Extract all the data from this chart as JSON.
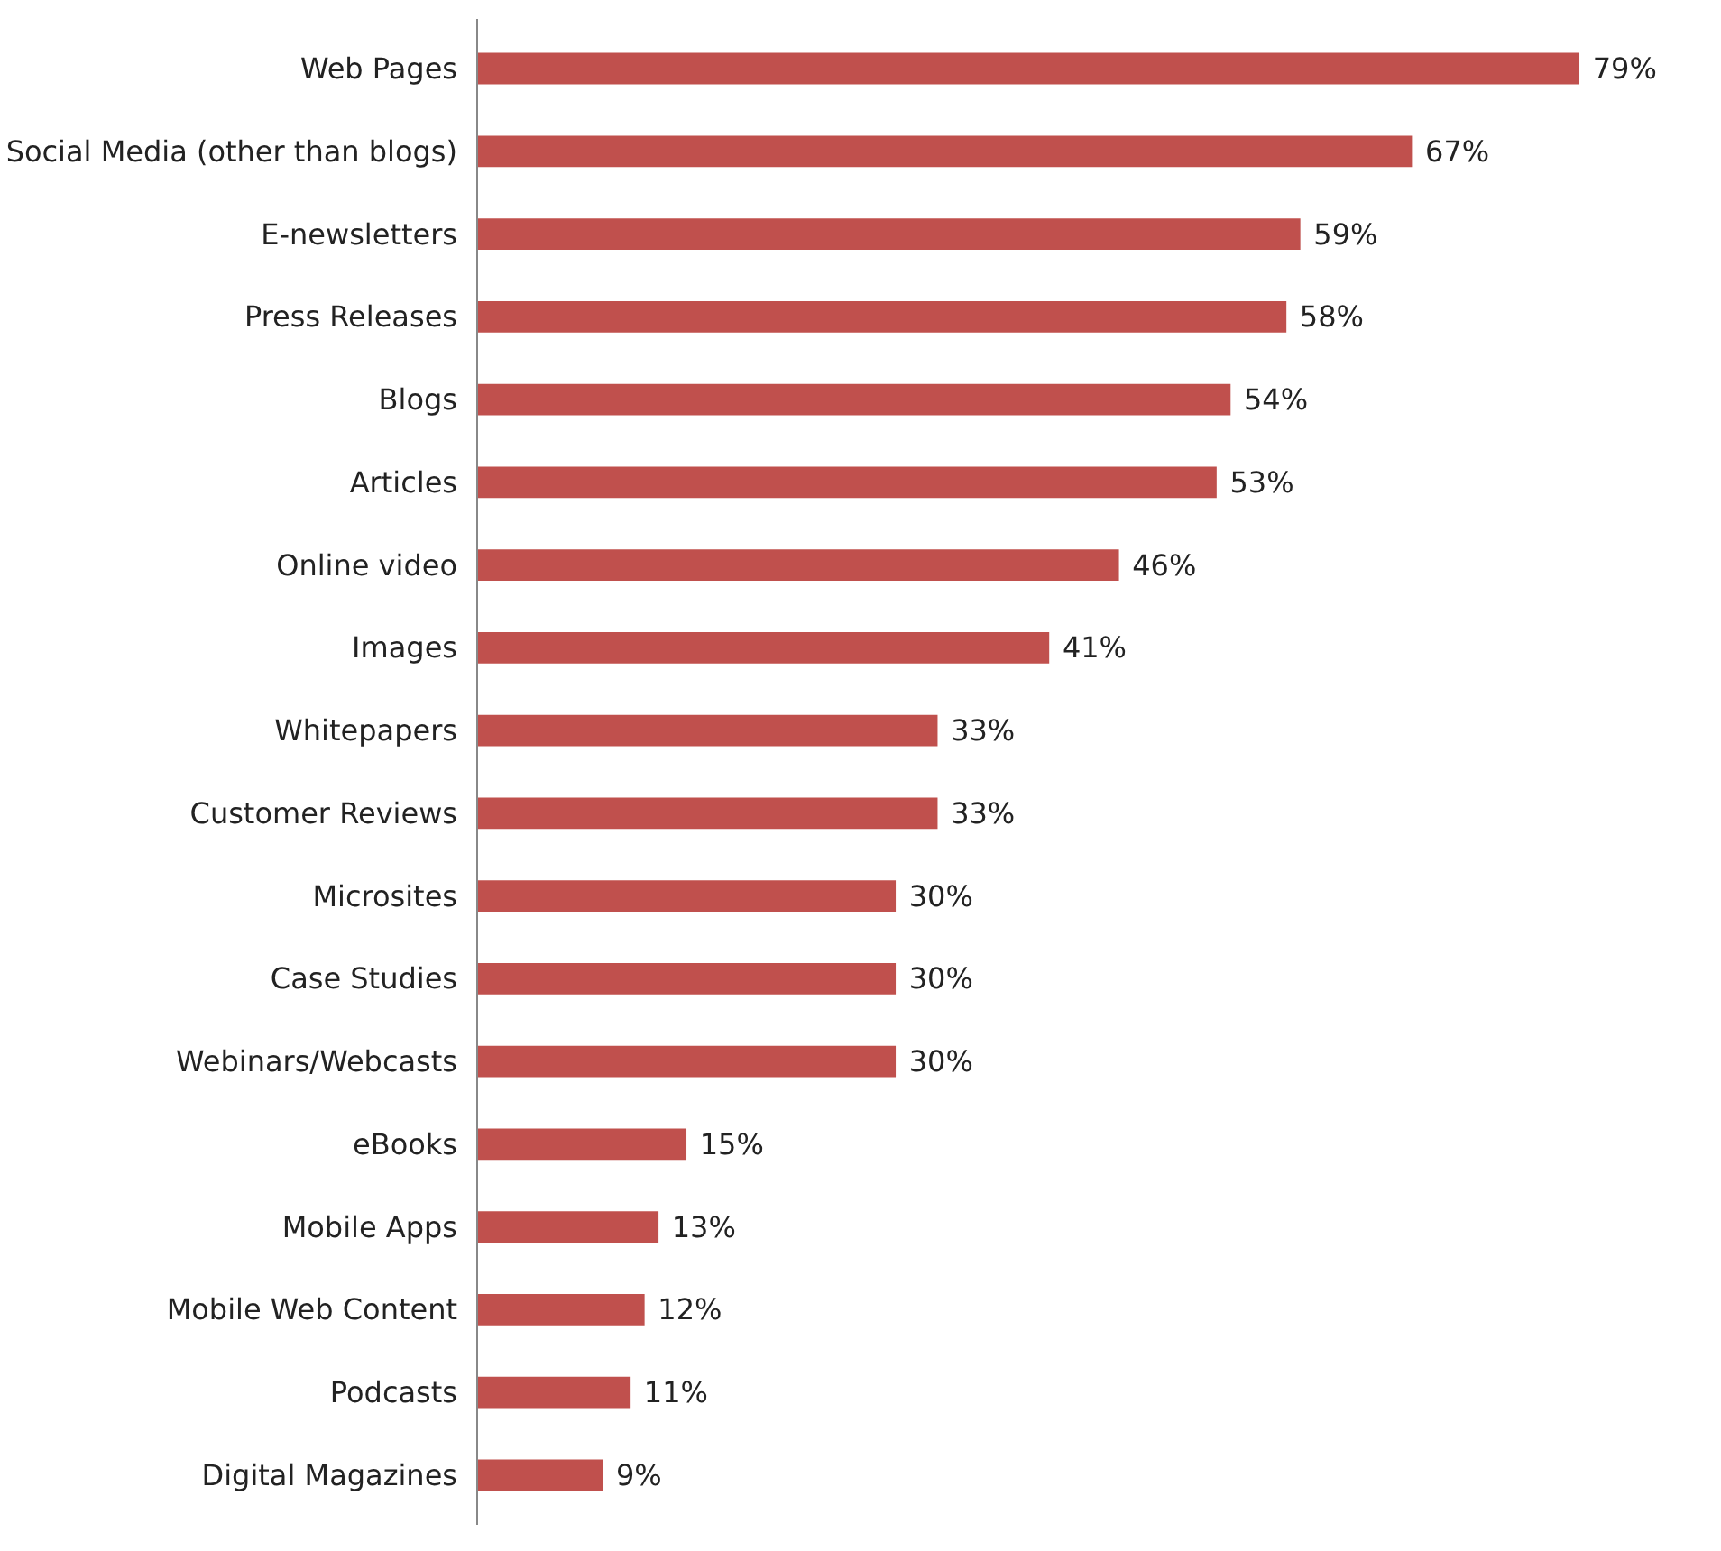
{
  "chart_data": {
    "type": "bar",
    "orientation": "horizontal",
    "color": "#c0504d",
    "categories": [
      "Web Pages",
      "Social Media (other than blogs)",
      "E-newsletters",
      "Press Releases",
      "Blogs",
      "Articles",
      "Online video",
      "Images",
      "Whitepapers",
      "Customer Reviews",
      "Microsites",
      "Case Studies",
      "Webinars/Webcasts",
      "eBooks",
      "Mobile Apps",
      "Mobile Web Content",
      "Podcasts",
      "Digital Magazines"
    ],
    "values": [
      79,
      67,
      59,
      58,
      54,
      53,
      46,
      41,
      33,
      33,
      30,
      30,
      30,
      15,
      13,
      12,
      11,
      9
    ],
    "value_labels": [
      "79%",
      "67%",
      "59%",
      "58%",
      "54%",
      "53%",
      "46%",
      "41%",
      "33%",
      "33%",
      "30%",
      "30%",
      "30%",
      "15%",
      "13%",
      "12%",
      "11%",
      "9%"
    ],
    "grid": false
  }
}
